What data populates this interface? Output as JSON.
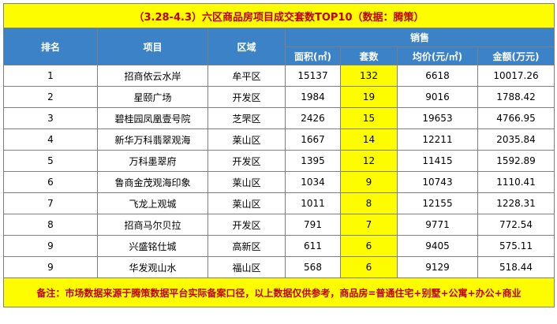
{
  "title": "（3.28-4.3）六区商品房项目成交套数TOP10（数据：腾策）",
  "headers": {
    "rank": "排名",
    "project": "项目",
    "district": "区域",
    "sales": "销售",
    "area": "面积(㎡)",
    "units": "套数",
    "avg_price": "均价(元/㎡)",
    "amount": "金额(万元)"
  },
  "rows": [
    {
      "rank": "1",
      "project": "招商依云水岸",
      "district": "牟平区",
      "area": "15137",
      "units": "132",
      "avg_price": "6618",
      "amount": "10017.26"
    },
    {
      "rank": "2",
      "project": "星颐广场",
      "district": "开发区",
      "area": "1984",
      "units": "19",
      "avg_price": "9016",
      "amount": "1788.42"
    },
    {
      "rank": "3",
      "project": "碧桂园凤凰壹号院",
      "district": "芝罘区",
      "area": "2426",
      "units": "15",
      "avg_price": "19653",
      "amount": "4766.95"
    },
    {
      "rank": "4",
      "project": "新华万科翡翠观海",
      "district": "莱山区",
      "area": "1667",
      "units": "14",
      "avg_price": "12211",
      "amount": "2035.84"
    },
    {
      "rank": "5",
      "project": "万科墨翠府",
      "district": "开发区",
      "area": "1395",
      "units": "12",
      "avg_price": "11415",
      "amount": "1592.89"
    },
    {
      "rank": "6",
      "project": "鲁商金茂观海印象",
      "district": "莱山区",
      "area": "1034",
      "units": "9",
      "avg_price": "10743",
      "amount": "1110.41"
    },
    {
      "rank": "7",
      "project": "飞龙上观城",
      "district": "莱山区",
      "area": "1011",
      "units": "8",
      "avg_price": "12155",
      "amount": "1228.31"
    },
    {
      "rank": "8",
      "project": "招商马尔贝拉",
      "district": "开发区",
      "area": "791",
      "units": "7",
      "avg_price": "9771",
      "amount": "772.54"
    },
    {
      "rank": "9",
      "project": "兴盛铭仕城",
      "district": "高新区",
      "area": "611",
      "units": "6",
      "avg_price": "9405",
      "amount": "575.11"
    },
    {
      "rank": "9",
      "project": "华发观山水",
      "district": "福山区",
      "area": "568",
      "units": "6",
      "avg_price": "9129",
      "amount": "518.44"
    }
  ],
  "note": "备注：市场数据来源于腾策数据平台实际备案口径，以上数据仅供参考，商品房=普通住宅+别墅+公寓+办公+商业",
  "colors": {
    "title_bg": "#fdfd00",
    "title_text": "#c00000",
    "header_bg": "#3c82c6",
    "header_text": "#ffffff",
    "highlight_bg": "#fdfd00"
  }
}
